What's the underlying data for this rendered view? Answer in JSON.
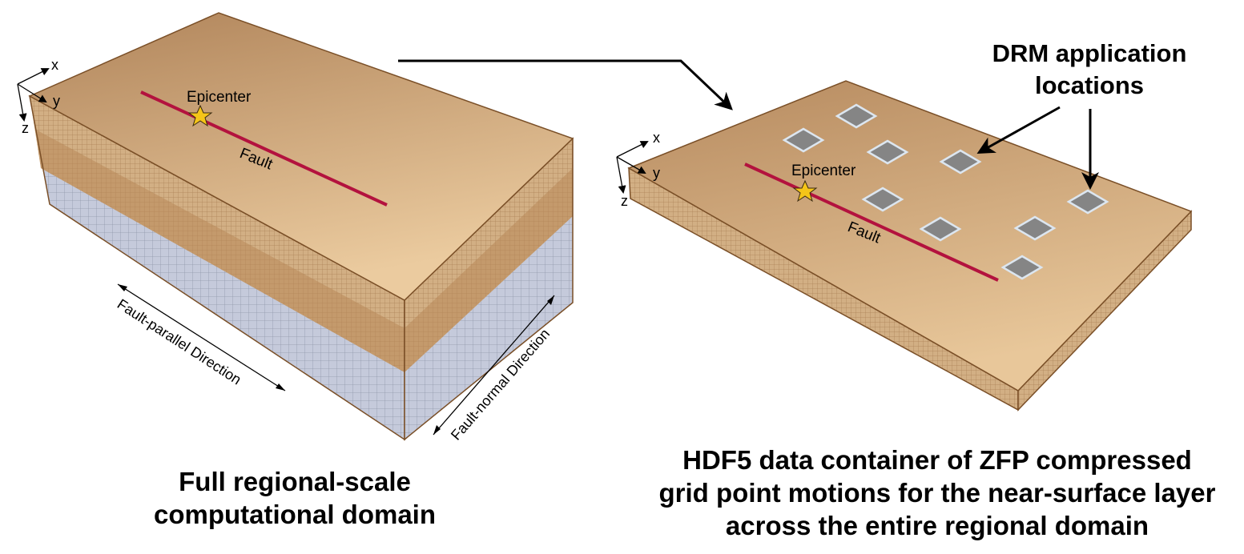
{
  "left_panel": {
    "axes": {
      "x": "x",
      "y": "y",
      "z": "z"
    },
    "epicenter_label": "Epicenter",
    "fault_label": "Fault",
    "parallel_label": "Fault-parallel Direction",
    "normal_label": "Fault-normal Direction",
    "caption": [
      "Full regional-scale",
      "computational domain"
    ]
  },
  "right_panel": {
    "axes": {
      "x": "x",
      "y": "y",
      "z": "z"
    },
    "epicenter_label": "Epicenter",
    "fault_label": "Fault",
    "drm_label": [
      "DRM application",
      "locations"
    ],
    "caption": [
      "HDF5 data container of ZFP compressed",
      "grid point motions for the near-surface layer",
      "across the entire regional domain"
    ]
  },
  "colors": {
    "top_light": "#e9c89b",
    "top_dark": "#b5895e",
    "soil_layer": "#d3b086",
    "soil_layer_dark": "#b8885a",
    "rock_layer": "#c5cadb",
    "fault": "#b3123e",
    "star": "#f5c518",
    "patch": "#858585",
    "patch_border": "#dce6f0"
  }
}
